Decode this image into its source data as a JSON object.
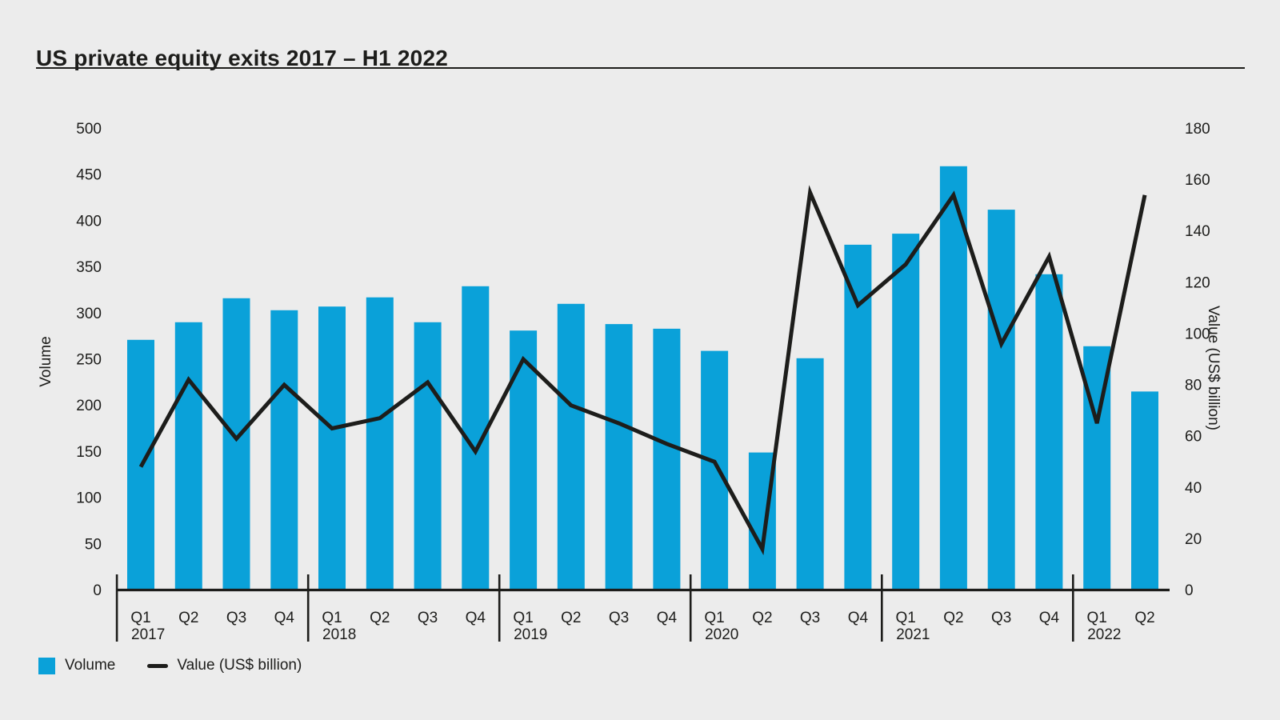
{
  "title": "US private equity exits 2017 – H1 2022",
  "colors": {
    "background": "#ECECEC",
    "bar_blue": "#0AA1D9",
    "ink": "#1D1D1B"
  },
  "chart_data": {
    "type": "bar+line",
    "title": "US private equity exits 2017 – H1 2022",
    "categories": [
      "Q1 2017",
      "Q2 2017",
      "Q3 2017",
      "Q4 2017",
      "Q1 2018",
      "Q2 2018",
      "Q3 2018",
      "Q4 2018",
      "Q1 2019",
      "Q2 2019",
      "Q3 2019",
      "Q4 2019",
      "Q1 2020",
      "Q2 2020",
      "Q3 2020",
      "Q4 2020",
      "Q1 2021",
      "Q2 2021",
      "Q3 2021",
      "Q4 2021",
      "Q1 2022",
      "Q2 2022"
    ],
    "quarter_labels": [
      "Q1",
      "Q2",
      "Q3",
      "Q4",
      "Q1",
      "Q2",
      "Q3",
      "Q4",
      "Q1",
      "Q2",
      "Q3",
      "Q4",
      "Q1",
      "Q2",
      "Q3",
      "Q4",
      "Q1",
      "Q2",
      "Q3",
      "Q4",
      "Q1",
      "Q2"
    ],
    "year_labels": [
      {
        "index": 0,
        "label": "2017"
      },
      {
        "index": 4,
        "label": "2018"
      },
      {
        "index": 8,
        "label": "2019"
      },
      {
        "index": 12,
        "label": "2020"
      },
      {
        "index": 16,
        "label": "2021"
      },
      {
        "index": 20,
        "label": "2022"
      }
    ],
    "series": [
      {
        "name": "Volume",
        "type": "bar",
        "axis": "left",
        "color": "#0AA1D9",
        "values": [
          271,
          290,
          316,
          303,
          307,
          317,
          290,
          329,
          281,
          310,
          288,
          283,
          259,
          149,
          251,
          374,
          386,
          459,
          412,
          342,
          264,
          215
        ]
      },
      {
        "name": "Value (US$ billion)",
        "type": "line",
        "axis": "right",
        "color": "#1D1D1B",
        "values": [
          48,
          82,
          59,
          80,
          63,
          67,
          81,
          54,
          90,
          72,
          65,
          57,
          50,
          16,
          155,
          111,
          127,
          154,
          96,
          130,
          65,
          154
        ]
      }
    ],
    "left_axis": {
      "label": "Volume",
      "min": 0,
      "max": 500,
      "tick_step": 50,
      "ticks": [
        0,
        50,
        100,
        150,
        200,
        250,
        300,
        350,
        400,
        450,
        500
      ]
    },
    "right_axis": {
      "label": "Value (US$ billion)",
      "min": 0,
      "max": 180,
      "tick_step": 20,
      "ticks": [
        0,
        20,
        40,
        60,
        80,
        100,
        120,
        140,
        160,
        180
      ]
    },
    "grid": false,
    "legend_position": "bottom-left"
  }
}
